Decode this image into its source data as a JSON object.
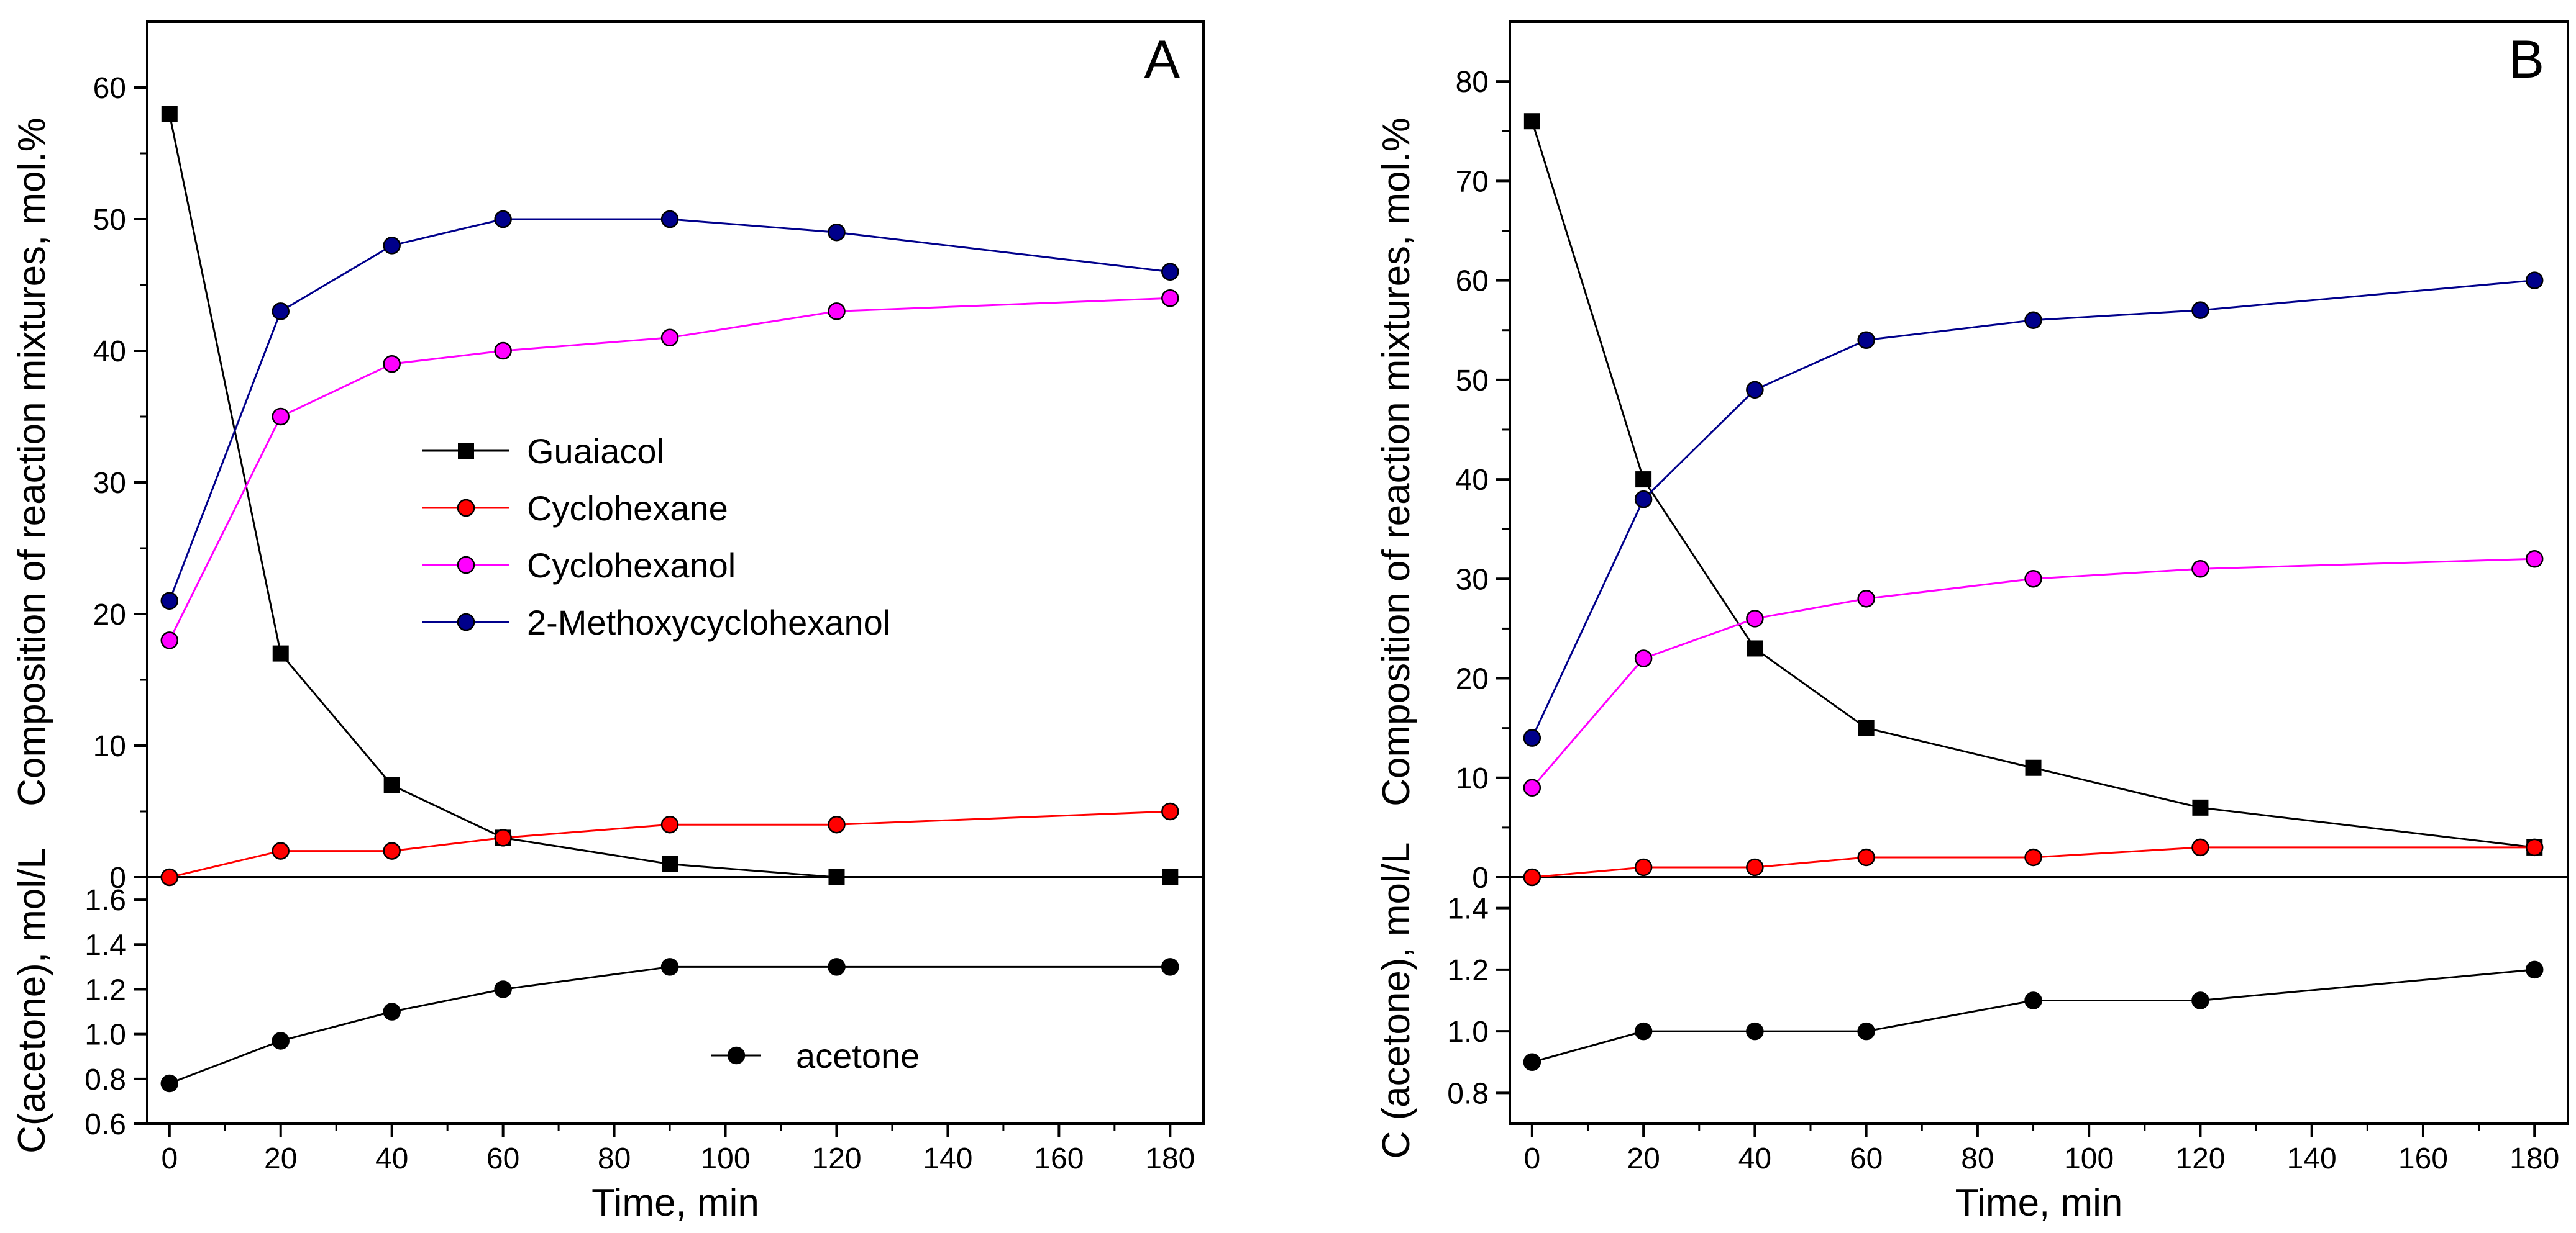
{
  "chart_data": [
    {
      "type": "line",
      "panel": "A",
      "title": "",
      "x": [
        0,
        20,
        40,
        60,
        90,
        120,
        180
      ],
      "xlabel": "Time, min",
      "xlim": [
        -4,
        186
      ],
      "xticks": [
        0,
        20,
        40,
        60,
        80,
        100,
        120,
        140,
        160,
        180
      ],
      "top": {
        "ylabel": "Composition of reaction mixtures, mol.%",
        "ylim": [
          0,
          65
        ],
        "yticks": [
          0,
          10,
          20,
          30,
          40,
          50,
          60
        ],
        "legend_position": "center",
        "series": [
          {
            "name": "Guaiacol",
            "color": "#000000",
            "marker": "square",
            "values": [
              58,
              17,
              7,
              3,
              1,
              0,
              0
            ]
          },
          {
            "name": "Cyclohexane",
            "color": "#ff0000",
            "marker": "circle",
            "values": [
              0,
              2,
              2,
              3,
              4,
              4,
              5
            ]
          },
          {
            "name": "Cyclohexanol",
            "color": "#ff00ff",
            "marker": "circle",
            "values": [
              18,
              35,
              39,
              40,
              41,
              43,
              44
            ]
          },
          {
            "name": "2-Methoxycyclohexanol",
            "color": "#00008b",
            "marker": "circle",
            "values": [
              21,
              43,
              48,
              50,
              50,
              49,
              46
            ]
          }
        ]
      },
      "bottom": {
        "ylabel": "C(acetone), mol/L",
        "ylim": [
          0.6,
          1.7
        ],
        "yticks": [
          0.6,
          0.8,
          1.0,
          1.2,
          1.4,
          1.6
        ],
        "yticklabels": [
          "0.6",
          "0.8",
          "1.0",
          "1.2",
          "1.4",
          "1.6"
        ],
        "legend_position": "bottom-center",
        "series": [
          {
            "name": "acetone",
            "color": "#000000",
            "marker": "circle",
            "values": [
              0.78,
              0.97,
              1.1,
              1.2,
              1.3,
              1.3,
              1.3
            ]
          }
        ]
      }
    },
    {
      "type": "line",
      "panel": "B",
      "title": "",
      "x": [
        0,
        20,
        40,
        60,
        90,
        120,
        180
      ],
      "xlabel": "Time, min",
      "xlim": [
        -4,
        186
      ],
      "xticks": [
        0,
        20,
        40,
        60,
        80,
        100,
        120,
        140,
        160,
        180
      ],
      "top": {
        "ylabel": "Composition of reaction mixtures, mol.%",
        "ylim": [
          0,
          86
        ],
        "yticks": [
          0,
          10,
          20,
          30,
          40,
          50,
          60,
          70,
          80
        ],
        "series": [
          {
            "name": "Guaiacol",
            "color": "#000000",
            "marker": "square",
            "values": [
              76,
              40,
              23,
              15,
              11,
              7,
              3
            ]
          },
          {
            "name": "Cyclohexane",
            "color": "#ff0000",
            "marker": "circle",
            "values": [
              0,
              1,
              1,
              2,
              2,
              3,
              3
            ]
          },
          {
            "name": "Cyclohexanol",
            "color": "#ff00ff",
            "marker": "circle",
            "values": [
              9,
              22,
              26,
              28,
              30,
              31,
              32
            ]
          },
          {
            "name": "2-Methoxycyclohexanol",
            "color": "#00008b",
            "marker": "circle",
            "values": [
              14,
              38,
              49,
              54,
              56,
              57,
              60
            ]
          }
        ]
      },
      "bottom": {
        "ylabel": "C (acetone), mol/L",
        "ylim": [
          0.7,
          1.5
        ],
        "yticks": [
          0.8,
          1.0,
          1.2,
          1.4
        ],
        "yticklabels": [
          "0.8",
          "1.0",
          "1.2",
          "1.4"
        ],
        "series": [
          {
            "name": "acetone",
            "color": "#000000",
            "marker": "circle",
            "values": [
              0.9,
              1.0,
              1.0,
              1.0,
              1.1,
              1.1,
              1.2
            ]
          }
        ]
      }
    }
  ]
}
